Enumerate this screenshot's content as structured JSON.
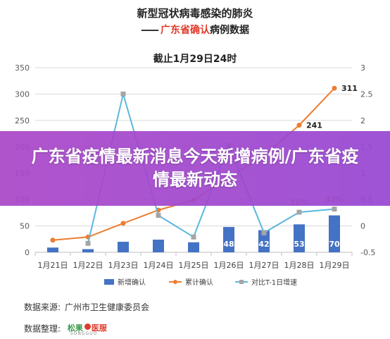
{
  "title": {
    "line1": "新型冠状病毒感染的肺炎",
    "line2_prefix": "——",
    "line2_red": "广东省确认",
    "line2_black": "病例数据"
  },
  "chart_data": {
    "type": "bar",
    "subtitle": "截止1月29日24时",
    "categories": [
      "1月21日",
      "1月22日",
      "1月23日",
      "1月24日",
      "1月25日",
      "1月26日",
      "1月27日",
      "1月28日",
      "1月29日"
    ],
    "y_left": {
      "ticks": [
        "0",
        "50",
        "100",
        "150",
        "200",
        "250",
        "300",
        "350"
      ],
      "range": [
        0,
        350
      ]
    },
    "y_right": {
      "ticks": [
        "-0.5",
        "0",
        "0.5",
        "1",
        "1.5",
        "2",
        "2.5",
        "3"
      ],
      "range": [
        -0.5,
        3
      ]
    },
    "series": [
      {
        "name": "新增确认",
        "type": "bar",
        "axis": "left",
        "values": [
          9,
          6,
          20,
          24,
          19,
          48,
          42,
          53,
          70
        ],
        "labels": [
          "",
          "",
          "",
          "",
          "",
          "48",
          "42",
          "53",
          "70"
        ],
        "color": "#4472c4"
      },
      {
        "name": "累计确认",
        "type": "line",
        "axis": "left",
        "values": [
          23,
          29,
          55,
          80,
          99,
          142,
          183,
          241,
          311
        ],
        "labels": [
          "",
          "",
          "",
          "",
          "",
          "",
          "",
          "241",
          "311"
        ],
        "color": "#ed7d31"
      },
      {
        "name": "对比T-1日增速",
        "type": "line",
        "axis": "right",
        "values": [
          null,
          -0.33,
          2.5,
          0.2,
          -0.21,
          1.52,
          -0.13,
          0.26,
          0.32
        ],
        "labels": [
          "",
          "",
          "",
          "",
          "",
          "",
          "",
          "26%",
          "32%"
        ],
        "color": "#5bb8dc",
        "marker_color": "#a5a5a5"
      }
    ],
    "legend_position": "bottom",
    "grid": true
  },
  "banner": {
    "text": "广东省疫情最新消息今天新增病例/广东省疫情最新动态"
  },
  "footer": {
    "source_label": "数据来源:",
    "source_value": "广州市卫生健康委员会",
    "compiler_label": "数据整理:",
    "logo_text_1": "松果",
    "logo_text_2": "医服",
    "logo_small": "SONGGUO"
  }
}
